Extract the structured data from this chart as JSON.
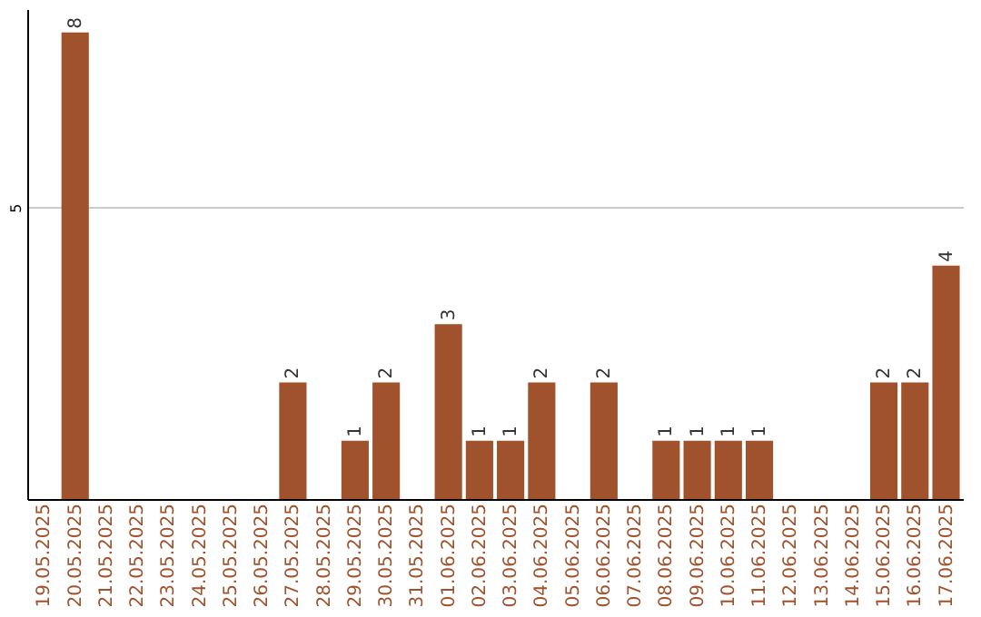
{
  "chart_data": {
    "type": "bar",
    "categories": [
      "19.05.2025",
      "20.05.2025",
      "21.05.2025",
      "22.05.2025",
      "23.05.2025",
      "24.05.2025",
      "25.05.2025",
      "26.05.2025",
      "27.05.2025",
      "28.05.2025",
      "29.05.2025",
      "30.05.2025",
      "31.05.2025",
      "01.06.2025",
      "02.06.2025",
      "03.06.2025",
      "04.06.2025",
      "05.06.2025",
      "06.06.2025",
      "07.06.2025",
      "08.06.2025",
      "09.06.2025",
      "10.06.2025",
      "11.06.2025",
      "12.06.2025",
      "13.06.2025",
      "14.06.2025",
      "15.06.2025",
      "16.06.2025",
      "17.06.2025"
    ],
    "values": [
      0,
      8,
      0,
      0,
      0,
      0,
      0,
      0,
      2,
      0,
      1,
      2,
      0,
      3,
      1,
      1,
      2,
      0,
      2,
      0,
      1,
      1,
      1,
      1,
      0,
      0,
      0,
      2,
      2,
      4
    ],
    "value_labels": [
      null,
      "8",
      null,
      null,
      null,
      null,
      null,
      null,
      "2",
      null,
      "1",
      "2",
      null,
      "3",
      "1",
      "1",
      "2",
      null,
      "2",
      null,
      "1",
      "1",
      "1",
      "1",
      null,
      null,
      null,
      "2",
      "2",
      "4"
    ],
    "color": "#a0522d",
    "ylim": [
      0,
      8.4
    ],
    "yticks": [
      5
    ],
    "grid": "y"
  }
}
